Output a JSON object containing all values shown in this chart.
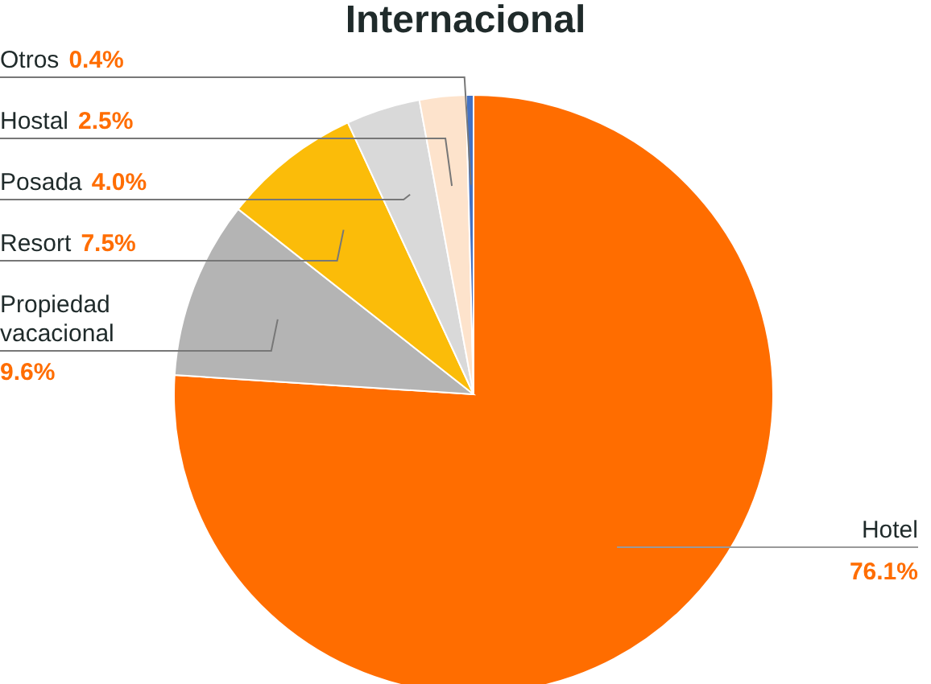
{
  "chart_data": {
    "type": "pie",
    "title": "Internacional",
    "categories": [
      "Hotel",
      "Propiedad vacacional",
      "Resort",
      "Posada",
      "Hostal",
      "Otros"
    ],
    "values": [
      76.1,
      9.6,
      7.5,
      4.0,
      2.5,
      0.4
    ],
    "colors": [
      "#ff6d00",
      "#b4b4b4",
      "#fbbc09",
      "#d9d9d9",
      "#fde3cc",
      "#4472c4"
    ],
    "value_labels": [
      "76.1%",
      "9.6%",
      "7.5%",
      "4.0%",
      "2.5%",
      "0.4%"
    ]
  }
}
